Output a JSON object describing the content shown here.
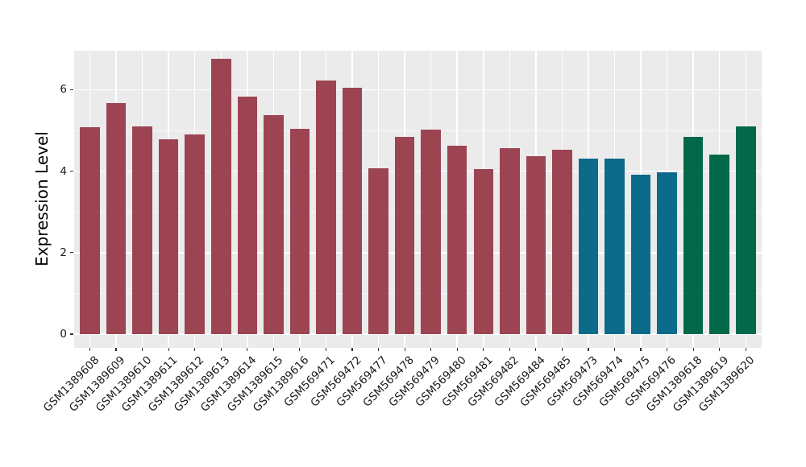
{
  "chart_data": {
    "type": "bar",
    "title": "",
    "xlabel": "",
    "ylabel": "Expression Level",
    "ylim": [
      0,
      6.95
    ],
    "yticks": [
      0,
      2,
      4,
      6
    ],
    "yminorticks": [
      1,
      3,
      5
    ],
    "grid": true,
    "legend": "none",
    "panel_background": "#EBEBEB",
    "gridline_color": "#FFFFFF",
    "tick_color": "#333333",
    "group_colors": {
      "group1": "#9C4452",
      "group2": "#0C6A8B",
      "group3": "#01684A"
    },
    "bars": [
      {
        "label": "GSM1389608",
        "value": 5.07,
        "color": "#9C4452"
      },
      {
        "label": "GSM1389609",
        "value": 5.67,
        "color": "#9C4452"
      },
      {
        "label": "GSM1389610",
        "value": 5.09,
        "color": "#9C4452"
      },
      {
        "label": "GSM1389611",
        "value": 4.78,
        "color": "#9C4452"
      },
      {
        "label": "GSM1389612",
        "value": 4.91,
        "color": "#9C4452"
      },
      {
        "label": "GSM1389613",
        "value": 6.76,
        "color": "#9C4452"
      },
      {
        "label": "GSM1389614",
        "value": 5.83,
        "color": "#9C4452"
      },
      {
        "label": "GSM1389615",
        "value": 5.38,
        "color": "#9C4452"
      },
      {
        "label": "GSM1389616",
        "value": 5.04,
        "color": "#9C4452"
      },
      {
        "label": "GSM569471",
        "value": 6.22,
        "color": "#9C4452"
      },
      {
        "label": "GSM569472",
        "value": 6.05,
        "color": "#9C4452"
      },
      {
        "label": "GSM569477",
        "value": 4.07,
        "color": "#9C4452"
      },
      {
        "label": "GSM569478",
        "value": 4.84,
        "color": "#9C4452"
      },
      {
        "label": "GSM569479",
        "value": 5.02,
        "color": "#9C4452"
      },
      {
        "label": "GSM569480",
        "value": 4.62,
        "color": "#9C4452"
      },
      {
        "label": "GSM569481",
        "value": 4.05,
        "color": "#9C4452"
      },
      {
        "label": "GSM569482",
        "value": 4.56,
        "color": "#9C4452"
      },
      {
        "label": "GSM569484",
        "value": 4.36,
        "color": "#9C4452"
      },
      {
        "label": "GSM569485",
        "value": 4.53,
        "color": "#9C4452"
      },
      {
        "label": "GSM569473",
        "value": 4.3,
        "color": "#0C6A8B"
      },
      {
        "label": "GSM569474",
        "value": 4.3,
        "color": "#0C6A8B"
      },
      {
        "label": "GSM569475",
        "value": 3.91,
        "color": "#0C6A8B"
      },
      {
        "label": "GSM569476",
        "value": 3.97,
        "color": "#0C6A8B"
      },
      {
        "label": "GSM1389618",
        "value": 4.84,
        "color": "#01684A"
      },
      {
        "label": "GSM1389619",
        "value": 4.4,
        "color": "#01684A"
      },
      {
        "label": "GSM1389620",
        "value": 5.09,
        "color": "#01684A"
      }
    ]
  }
}
